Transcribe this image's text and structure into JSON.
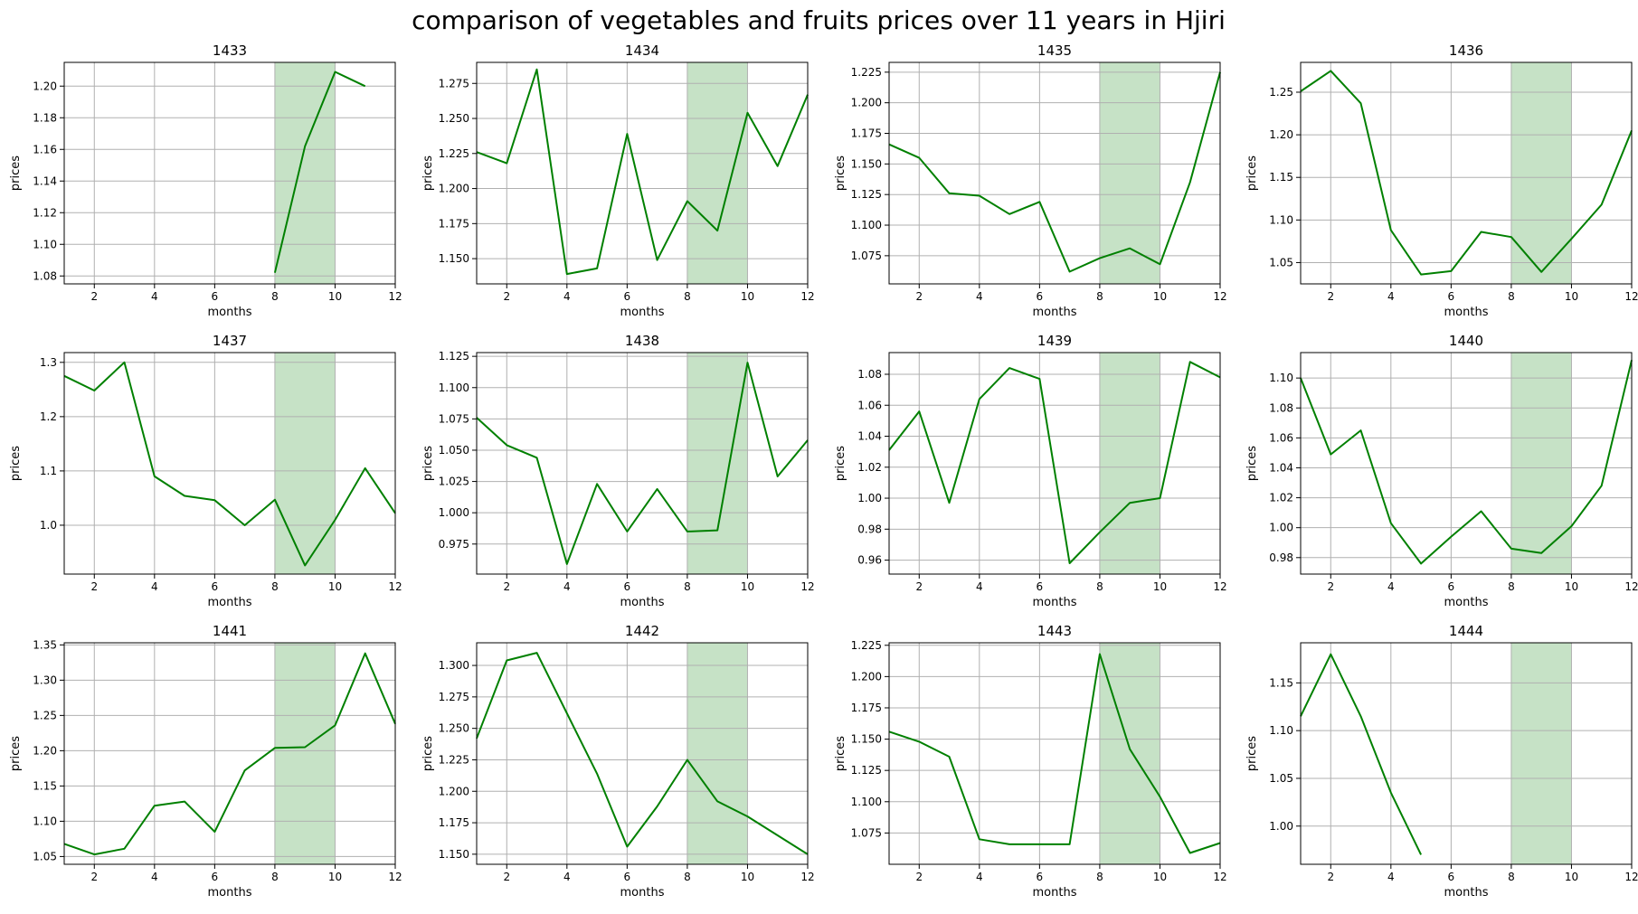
{
  "figure": {
    "title": "comparison of vegetables and fruits prices over 11 years in Hjiri"
  },
  "chart_data": [
    {
      "type": "line",
      "title": "1433",
      "xlabel": "months",
      "ylabel": "prices",
      "xlim": [
        1,
        12
      ],
      "ylim": [
        1.075,
        1.215
      ],
      "xticks": [
        "2",
        "4",
        "6",
        "8",
        "10",
        "12"
      ],
      "yticks": [
        "1.08",
        "1.10",
        "1.12",
        "1.14",
        "1.16",
        "1.18",
        "1.20"
      ],
      "highlight_range": [
        8,
        10
      ],
      "x": [
        8,
        9,
        10,
        11
      ],
      "values": [
        1.082,
        1.162,
        1.209,
        1.2
      ]
    },
    {
      "type": "line",
      "title": "1434",
      "xlabel": "months",
      "ylabel": "prices",
      "xlim": [
        1,
        12
      ],
      "ylim": [
        1.132,
        1.29
      ],
      "xticks": [
        "2",
        "4",
        "6",
        "8",
        "10",
        "12"
      ],
      "yticks": [
        "1.150",
        "1.175",
        "1.200",
        "1.225",
        "1.250",
        "1.275"
      ],
      "highlight_range": [
        8,
        10
      ],
      "x": [
        1,
        2,
        3,
        4,
        5,
        6,
        7,
        8,
        9,
        10,
        11,
        12
      ],
      "values": [
        1.226,
        1.218,
        1.285,
        1.139,
        1.143,
        1.239,
        1.149,
        1.191,
        1.17,
        1.254,
        1.216,
        1.267
      ]
    },
    {
      "type": "line",
      "title": "1435",
      "xlabel": "months",
      "ylabel": "prices",
      "xlim": [
        1,
        12
      ],
      "ylim": [
        1.052,
        1.233
      ],
      "xticks": [
        "2",
        "4",
        "6",
        "8",
        "10",
        "12"
      ],
      "yticks": [
        "1.075",
        "1.100",
        "1.125",
        "1.150",
        "1.175",
        "1.200",
        "1.225"
      ],
      "highlight_range": [
        8,
        10
      ],
      "x": [
        1,
        2,
        3,
        4,
        5,
        6,
        7,
        8,
        9,
        10,
        11,
        12
      ],
      "values": [
        1.166,
        1.155,
        1.126,
        1.124,
        1.109,
        1.119,
        1.062,
        1.073,
        1.081,
        1.068,
        1.135,
        1.225
      ]
    },
    {
      "type": "line",
      "title": "1436",
      "xlabel": "months",
      "ylabel": "prices",
      "xlim": [
        1,
        12
      ],
      "ylim": [
        1.025,
        1.285
      ],
      "xticks": [
        "2",
        "4",
        "6",
        "8",
        "10",
        "12"
      ],
      "yticks": [
        "1.05",
        "1.10",
        "1.15",
        "1.20",
        "1.25"
      ],
      "highlight_range": [
        8,
        10
      ],
      "x": [
        1,
        2,
        3,
        4,
        5,
        6,
        7,
        8,
        9,
        10,
        11,
        12
      ],
      "values": [
        1.251,
        1.275,
        1.237,
        1.088,
        1.036,
        1.04,
        1.086,
        1.08,
        1.039,
        1.078,
        1.118,
        1.205
      ]
    },
    {
      "type": "line",
      "title": "1437",
      "xlabel": "months",
      "ylabel": "prices",
      "xlim": [
        1,
        12
      ],
      "ylim": [
        0.91,
        1.318
      ],
      "xticks": [
        "2",
        "4",
        "6",
        "8",
        "10",
        "12"
      ],
      "yticks": [
        "1.0",
        "1.1",
        "1.2",
        "1.3"
      ],
      "highlight_range": [
        8,
        10
      ],
      "x": [
        1,
        2,
        3,
        4,
        5,
        6,
        7,
        8,
        9,
        10,
        11,
        12
      ],
      "values": [
        1.275,
        1.248,
        1.3,
        1.09,
        1.054,
        1.046,
        1.0,
        1.047,
        0.926,
        1.01,
        1.105,
        1.022
      ]
    },
    {
      "type": "line",
      "title": "1438",
      "xlabel": "months",
      "ylabel": "prices",
      "xlim": [
        1,
        12
      ],
      "ylim": [
        0.951,
        1.128
      ],
      "xticks": [
        "2",
        "4",
        "6",
        "8",
        "10",
        "12"
      ],
      "yticks": [
        "0.975",
        "1.000",
        "1.025",
        "1.050",
        "1.075",
        "1.100",
        "1.125"
      ],
      "highlight_range": [
        8,
        10
      ],
      "x": [
        1,
        2,
        3,
        4,
        5,
        6,
        7,
        8,
        9,
        10,
        11,
        12
      ],
      "values": [
        1.076,
        1.054,
        1.044,
        0.959,
        1.023,
        0.985,
        1.019,
        0.985,
        0.986,
        1.12,
        1.029,
        1.058
      ]
    },
    {
      "type": "line",
      "title": "1439",
      "xlabel": "months",
      "ylabel": "prices",
      "xlim": [
        1,
        12
      ],
      "ylim": [
        0.951,
        1.094
      ],
      "xticks": [
        "2",
        "4",
        "6",
        "8",
        "10",
        "12"
      ],
      "yticks": [
        "0.96",
        "0.98",
        "1.00",
        "1.02",
        "1.04",
        "1.06",
        "1.08"
      ],
      "highlight_range": [
        8,
        10
      ],
      "x": [
        1,
        2,
        3,
        4,
        5,
        6,
        7,
        8,
        9,
        10,
        11,
        12
      ],
      "values": [
        1.031,
        1.056,
        0.997,
        1.064,
        1.084,
        1.077,
        0.958,
        0.978,
        0.997,
        1.0,
        1.088,
        1.078
      ]
    },
    {
      "type": "line",
      "title": "1440",
      "xlabel": "months",
      "ylabel": "prices",
      "xlim": [
        1,
        12
      ],
      "ylim": [
        0.969,
        1.117
      ],
      "xticks": [
        "2",
        "4",
        "6",
        "8",
        "10",
        "12"
      ],
      "yticks": [
        "0.98",
        "1.00",
        "1.02",
        "1.04",
        "1.06",
        "1.08",
        "1.10"
      ],
      "highlight_range": [
        8,
        10
      ],
      "x": [
        1,
        2,
        3,
        4,
        5,
        6,
        7,
        8,
        9,
        10,
        11,
        12
      ],
      "values": [
        1.1,
        1.049,
        1.065,
        1.003,
        0.976,
        0.994,
        1.011,
        0.986,
        0.983,
        1.001,
        1.028,
        1.112
      ]
    },
    {
      "type": "line",
      "title": "1441",
      "xlabel": "months",
      "ylabel": "prices",
      "xlim": [
        1,
        12
      ],
      "ylim": [
        1.039,
        1.353
      ],
      "xticks": [
        "2",
        "4",
        "6",
        "8",
        "10",
        "12"
      ],
      "yticks": [
        "1.05",
        "1.10",
        "1.15",
        "1.20",
        "1.25",
        "1.30",
        "1.35"
      ],
      "highlight_range": [
        8,
        10
      ],
      "x": [
        1,
        2,
        3,
        4,
        5,
        6,
        7,
        8,
        9,
        10,
        11,
        12
      ],
      "values": [
        1.068,
        1.053,
        1.061,
        1.122,
        1.128,
        1.085,
        1.172,
        1.204,
        1.205,
        1.236,
        1.338,
        1.238
      ]
    },
    {
      "type": "line",
      "title": "1442",
      "xlabel": "months",
      "ylabel": "prices",
      "xlim": [
        1,
        12
      ],
      "ylim": [
        1.142,
        1.318
      ],
      "xticks": [
        "2",
        "4",
        "6",
        "8",
        "10",
        "12"
      ],
      "yticks": [
        "1.150",
        "1.175",
        "1.200",
        "1.225",
        "1.250",
        "1.275",
        "1.300"
      ],
      "highlight_range": [
        8,
        10
      ],
      "x": [
        1,
        2,
        3,
        4,
        5,
        6,
        7,
        8,
        9,
        10,
        11,
        12
      ],
      "values": [
        1.242,
        1.304,
        1.31,
        1.262,
        1.214,
        1.156,
        1.188,
        1.225,
        1.192,
        1.18,
        1.165,
        1.15
      ]
    },
    {
      "type": "line",
      "title": "1443",
      "xlabel": "months",
      "ylabel": "prices",
      "xlim": [
        1,
        12
      ],
      "ylim": [
        1.05,
        1.227
      ],
      "xticks": [
        "2",
        "4",
        "6",
        "8",
        "10",
        "12"
      ],
      "yticks": [
        "1.075",
        "1.100",
        "1.125",
        "1.150",
        "1.175",
        "1.200",
        "1.225"
      ],
      "highlight_range": [
        8,
        10
      ],
      "x": [
        1,
        2,
        3,
        4,
        5,
        6,
        7,
        8,
        9,
        10,
        11,
        12
      ],
      "values": [
        1.156,
        1.148,
        1.136,
        1.07,
        1.066,
        1.066,
        1.066,
        1.218,
        1.142,
        1.104,
        1.059,
        1.067
      ]
    },
    {
      "type": "line",
      "title": "1444",
      "xlabel": "months",
      "ylabel": "prices",
      "xlim": [
        1,
        12
      ],
      "ylim": [
        0.96,
        1.192
      ],
      "xticks": [
        "2",
        "4",
        "6",
        "8",
        "10",
        "12"
      ],
      "yticks": [
        "1.00",
        "1.05",
        "1.10",
        "1.15"
      ],
      "highlight_range": [
        8,
        10
      ],
      "x": [
        1,
        2,
        3,
        4,
        5
      ],
      "values": [
        1.115,
        1.18,
        1.115,
        1.035,
        0.97
      ]
    }
  ],
  "colors": {
    "line": "#008000",
    "highlight": "#c6e2c6",
    "grid": "#b0b0b0",
    "axes": "#000000"
  }
}
